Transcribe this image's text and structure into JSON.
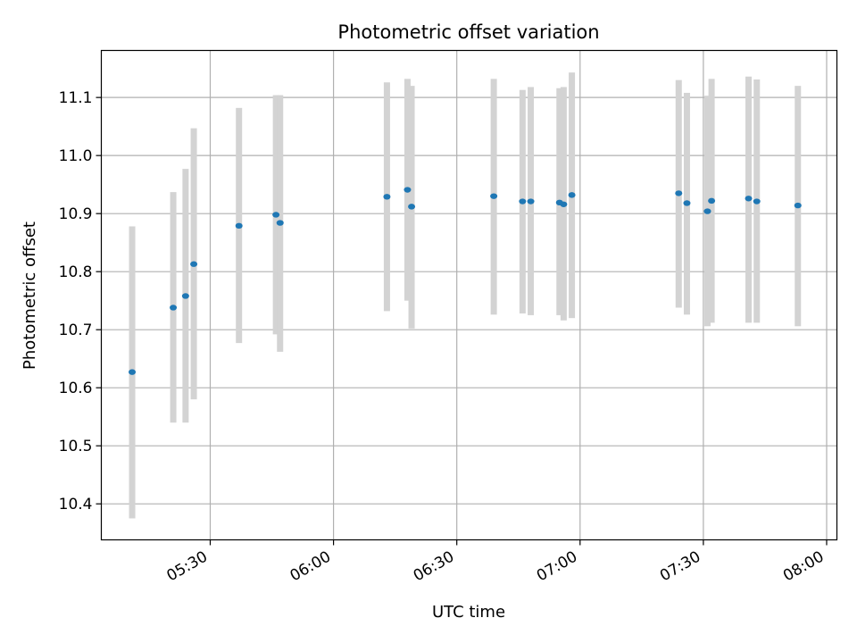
{
  "chart_data": {
    "type": "scatter",
    "title": "Photometric offset variation",
    "xlabel": "UTC time",
    "ylabel": "Photometric offset",
    "x_ticks": [
      "05:30",
      "06:00",
      "06:30",
      "07:00",
      "07:30",
      "08:00"
    ],
    "x_tick_minutes": [
      330,
      360,
      390,
      420,
      450,
      480
    ],
    "xlim_minutes": [
      303.5,
      482.5
    ],
    "y_ticks": [
      "10.4",
      "10.5",
      "10.6",
      "10.7",
      "10.8",
      "10.9",
      "11.0",
      "11.1"
    ],
    "ylim": [
      10.338,
      11.181
    ],
    "grid": true,
    "colors": {
      "points": "#1f77b4",
      "errorbars": "#d3d3d3",
      "grid": "#b0b0b0"
    },
    "series": [
      {
        "points": [
          {
            "t": "05:11",
            "y": 10.627,
            "lo": 10.375,
            "hi": 10.878
          },
          {
            "t": "05:21",
            "y": 10.738,
            "lo": 10.54,
            "hi": 10.937
          },
          {
            "t": "05:24",
            "y": 10.758,
            "lo": 10.54,
            "hi": 10.977
          },
          {
            "t": "05:26",
            "y": 10.813,
            "lo": 10.58,
            "hi": 11.047
          },
          {
            "t": "05:37",
            "y": 10.879,
            "lo": 10.677,
            "hi": 11.082
          },
          {
            "t": "05:46",
            "y": 10.898,
            "lo": 10.692,
            "hi": 11.104
          },
          {
            "t": "05:47",
            "y": 10.884,
            "lo": 10.662,
            "hi": 11.104
          },
          {
            "t": "06:13",
            "y": 10.929,
            "lo": 10.732,
            "hi": 11.126
          },
          {
            "t": "06:18",
            "y": 10.941,
            "lo": 10.75,
            "hi": 11.132
          },
          {
            "t": "06:19",
            "y": 10.912,
            "lo": 10.702,
            "hi": 11.12
          },
          {
            "t": "06:39",
            "y": 10.93,
            "lo": 10.726,
            "hi": 11.132
          },
          {
            "t": "06:46",
            "y": 10.921,
            "lo": 10.728,
            "hi": 11.113
          },
          {
            "t": "06:48",
            "y": 10.921,
            "lo": 10.725,
            "hi": 11.118
          },
          {
            "t": "06:55",
            "y": 10.919,
            "lo": 10.725,
            "hi": 11.116
          },
          {
            "t": "06:56",
            "y": 10.916,
            "lo": 10.716,
            "hi": 11.118
          },
          {
            "t": "06:58",
            "y": 10.932,
            "lo": 10.72,
            "hi": 11.143
          },
          {
            "t": "07:24",
            "y": 10.935,
            "lo": 10.738,
            "hi": 11.13
          },
          {
            "t": "07:26",
            "y": 10.918,
            "lo": 10.726,
            "hi": 11.108
          },
          {
            "t": "07:31",
            "y": 10.904,
            "lo": 10.706,
            "hi": 11.103
          },
          {
            "t": "07:32",
            "y": 10.922,
            "lo": 10.712,
            "hi": 11.132
          },
          {
            "t": "07:41",
            "y": 10.926,
            "lo": 10.712,
            "hi": 11.136
          },
          {
            "t": "07:43",
            "y": 10.921,
            "lo": 10.712,
            "hi": 11.131
          },
          {
            "t": "07:53",
            "y": 10.914,
            "lo": 10.706,
            "hi": 11.12
          }
        ]
      }
    ]
  }
}
